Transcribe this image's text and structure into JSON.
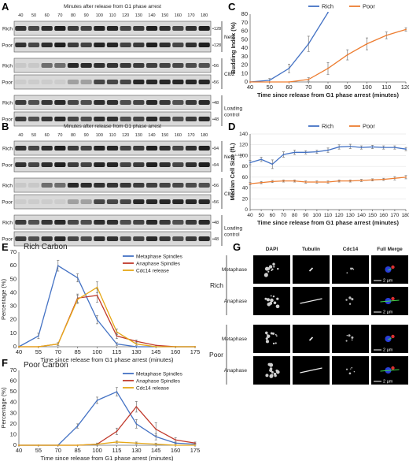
{
  "panels": {
    "A": {
      "label": "A",
      "header": "Minutes after release from G1 phase arrest",
      "timepoints": [
        "40",
        "50",
        "60",
        "70",
        "80",
        "90",
        "100",
        "110",
        "120",
        "130",
        "140",
        "150",
        "160",
        "170",
        "180"
      ],
      "rows": [
        {
          "strain": "Rich",
          "group": "Net1",
          "marker": "128",
          "pattern": "const",
          "base": 0.85
        },
        {
          "strain": "Poor",
          "group": "Net1",
          "marker": "128",
          "pattern": "const",
          "base": 0.85
        },
        {
          "strain": "Rich",
          "group": "Clb2",
          "marker": "56",
          "pattern": "early",
          "base": 0.9
        },
        {
          "strain": "Poor",
          "group": "Clb2",
          "marker": "56",
          "pattern": "late",
          "base": 0.9
        },
        {
          "strain": "Rich",
          "group": "Loading control",
          "marker": "48",
          "pattern": "const",
          "base": 0.8
        },
        {
          "strain": "Poor",
          "group": "Loading control",
          "marker": "48",
          "pattern": "const",
          "base": 0.8
        }
      ],
      "group_labels": [
        "Net1",
        "Clb2",
        "Loading",
        "control"
      ]
    },
    "B": {
      "label": "B",
      "header": "Minutes after release from G1 phase arrest",
      "timepoints": [
        "40",
        "50",
        "60",
        "70",
        "80",
        "90",
        "100",
        "110",
        "120",
        "130",
        "140",
        "150",
        "160",
        "170",
        "180"
      ],
      "rows": [
        {
          "strain": "Rich",
          "group": "Net1",
          "marker": "94",
          "pattern": "const",
          "base": 0.85
        },
        {
          "strain": "Poor",
          "group": "Net1",
          "marker": "94",
          "pattern": "const",
          "base": 0.85
        },
        {
          "strain": "Rich",
          "group": "Clb2",
          "marker": "56",
          "pattern": "early",
          "base": 0.9
        },
        {
          "strain": "Poor",
          "group": "Clb2",
          "marker": "56",
          "pattern": "late",
          "base": 0.9
        },
        {
          "strain": "Rich",
          "group": "Loading control",
          "marker": "48",
          "pattern": "const",
          "base": 0.8
        },
        {
          "strain": "Poor",
          "group": "Loading control",
          "marker": "48",
          "pattern": "const",
          "base": 0.8
        }
      ],
      "group_labels": [
        "Net1",
        "1-328",
        "Clb2",
        "Loading",
        "control"
      ]
    },
    "G": {
      "label": "G",
      "columns": [
        "DAPI",
        "Tubulin",
        "Cdc14",
        "Full Merge"
      ],
      "groups": [
        {
          "name": "Rich",
          "rows": [
            "Metaphase",
            "Anaphase"
          ]
        },
        {
          "name": "Poor",
          "rows": [
            "Metaphase",
            "Anaphase"
          ]
        }
      ],
      "scale_bar": "2 µm"
    }
  },
  "chart_data": [
    {
      "id": "C",
      "panel_label": "C",
      "type": "line",
      "xlabel": "Time since release from G1 phase arrest (minutes)",
      "ylabel": "Budding Index (%)",
      "xlim": [
        40,
        120
      ],
      "ylim": [
        0,
        80
      ],
      "xticks": [
        40,
        50,
        60,
        70,
        80,
        90,
        100,
        110,
        120
      ],
      "yticks": [
        0,
        10,
        20,
        30,
        40,
        50,
        60,
        70,
        80
      ],
      "legend_position": "top-right",
      "series": [
        {
          "name": "Rich",
          "color": "#4472c4",
          "x": [
            40,
            50,
            60,
            70,
            80
          ],
          "y": [
            0,
            2,
            16,
            45,
            82
          ],
          "err": [
            0,
            2,
            5,
            9,
            0
          ]
        },
        {
          "name": "Poor",
          "color": "#ed7d31",
          "x": [
            40,
            50,
            60,
            70,
            80,
            90,
            100,
            110,
            120
          ],
          "y": [
            0,
            0,
            0,
            3,
            16,
            32,
            45,
            55,
            62
          ],
          "err": [
            0,
            0,
            0,
            2,
            7,
            6,
            7,
            4,
            2
          ]
        }
      ]
    },
    {
      "id": "D",
      "panel_label": "D",
      "type": "line",
      "xlabel": "Time since release from G1 phase arrest (minutes)",
      "ylabel": "Median Cell Size (fL)",
      "xlim": [
        40,
        180
      ],
      "ylim": [
        0,
        140
      ],
      "xticks": [
        40,
        50,
        60,
        70,
        80,
        90,
        100,
        110,
        120,
        130,
        140,
        150,
        160,
        170,
        180
      ],
      "yticks": [
        0,
        20,
        40,
        60,
        80,
        100,
        120,
        140
      ],
      "legend_position": "top-right",
      "series": [
        {
          "name": "Rich",
          "color": "#4472c4",
          "x": [
            40,
            50,
            60,
            70,
            80,
            90,
            100,
            110,
            120,
            130,
            140,
            150,
            160,
            170,
            180
          ],
          "y": [
            87,
            93,
            84,
            102,
            106,
            106,
            107,
            110,
            116,
            117,
            115,
            116,
            115,
            115,
            112
          ],
          "err": [
            4,
            4,
            8,
            5,
            4,
            3,
            3,
            4,
            4,
            4,
            3,
            3,
            3,
            3,
            3
          ]
        },
        {
          "name": "Poor",
          "color": "#ed7d31",
          "x": [
            40,
            50,
            60,
            70,
            80,
            90,
            100,
            110,
            120,
            130,
            140,
            150,
            160,
            170,
            180
          ],
          "y": [
            48,
            50,
            52,
            53,
            53,
            51,
            51,
            51,
            53,
            53,
            54,
            55,
            56,
            58,
            60
          ],
          "err": [
            2,
            2,
            2,
            2,
            2,
            2,
            2,
            2,
            2,
            2,
            2,
            2,
            2,
            3,
            3
          ]
        }
      ]
    },
    {
      "id": "E",
      "panel_label": "E",
      "type": "line",
      "title": "Rich Carbon",
      "xlabel": "Time since release from G1 phase arrest (minutes)",
      "ylabel": "Percentage (%)",
      "xlim": [
        40,
        175
      ],
      "ylim": [
        0,
        70
      ],
      "xticks": [
        40,
        55,
        70,
        85,
        100,
        115,
        130,
        145,
        160,
        175
      ],
      "yticks": [
        0,
        10,
        20,
        30,
        40,
        50,
        60,
        70
      ],
      "legend_position": "top-right",
      "series": [
        {
          "name": "Metaphase Spindles",
          "color": "#4472c4",
          "x": [
            40,
            55,
            70,
            85,
            100,
            115,
            130,
            145,
            160,
            175
          ],
          "y": [
            0,
            8,
            60,
            51,
            20,
            2,
            0,
            0,
            0,
            0
          ],
          "err": [
            0,
            2,
            4,
            3,
            3,
            1,
            0,
            0,
            0,
            0
          ]
        },
        {
          "name": "Anaphase Spindles",
          "color": "#c0392b",
          "x": [
            40,
            55,
            70,
            85,
            100,
            115,
            130,
            145,
            160,
            175
          ],
          "y": [
            0,
            0,
            2,
            36,
            38,
            8,
            4,
            1,
            0,
            0
          ],
          "err": [
            0,
            0,
            1,
            3,
            5,
            2,
            1,
            0,
            0,
            0
          ]
        },
        {
          "name": "Cdc14 release",
          "color": "#e6a817",
          "x": [
            40,
            55,
            70,
            85,
            100,
            115,
            130,
            145,
            160,
            175
          ],
          "y": [
            0,
            0,
            2,
            35,
            44,
            11,
            2,
            0,
            0,
            0
          ],
          "err": [
            0,
            0,
            1,
            3,
            4,
            2,
            1,
            0,
            0,
            0
          ]
        }
      ]
    },
    {
      "id": "F",
      "panel_label": "F",
      "type": "line",
      "title": "Poor Carbon",
      "xlabel": "Time since release from G1 phase arrest (minutes)",
      "ylabel": "Percentage (%)",
      "xlim": [
        40,
        175
      ],
      "ylim": [
        0,
        70
      ],
      "xticks": [
        40,
        55,
        70,
        85,
        100,
        115,
        130,
        145,
        160,
        175
      ],
      "yticks": [
        0,
        10,
        20,
        30,
        40,
        50,
        60,
        70
      ],
      "legend_position": "top-right",
      "series": [
        {
          "name": "Metaphase Spindles",
          "color": "#4472c4",
          "x": [
            40,
            55,
            70,
            85,
            100,
            115,
            130,
            145,
            160,
            175
          ],
          "y": [
            0,
            0,
            0,
            18,
            42,
            50,
            20,
            8,
            2,
            1
          ],
          "err": [
            0,
            0,
            0,
            2,
            3,
            4,
            4,
            3,
            1,
            1
          ]
        },
        {
          "name": "Anaphase Spindles",
          "color": "#c0392b",
          "x": [
            40,
            55,
            70,
            85,
            100,
            115,
            130,
            145,
            160,
            175
          ],
          "y": [
            0,
            0,
            0,
            0,
            1,
            13,
            36,
            15,
            5,
            2
          ],
          "err": [
            0,
            0,
            0,
            0,
            1,
            3,
            5,
            6,
            2,
            1
          ]
        },
        {
          "name": "Cdc14 release",
          "color": "#e6a817",
          "x": [
            40,
            55,
            70,
            85,
            100,
            115,
            130,
            145,
            160,
            175
          ],
          "y": [
            0,
            0,
            0,
            0,
            1,
            3,
            2,
            1,
            0,
            0
          ],
          "err": [
            0,
            0,
            0,
            0,
            1,
            1,
            1,
            1,
            0,
            0
          ]
        }
      ]
    }
  ]
}
